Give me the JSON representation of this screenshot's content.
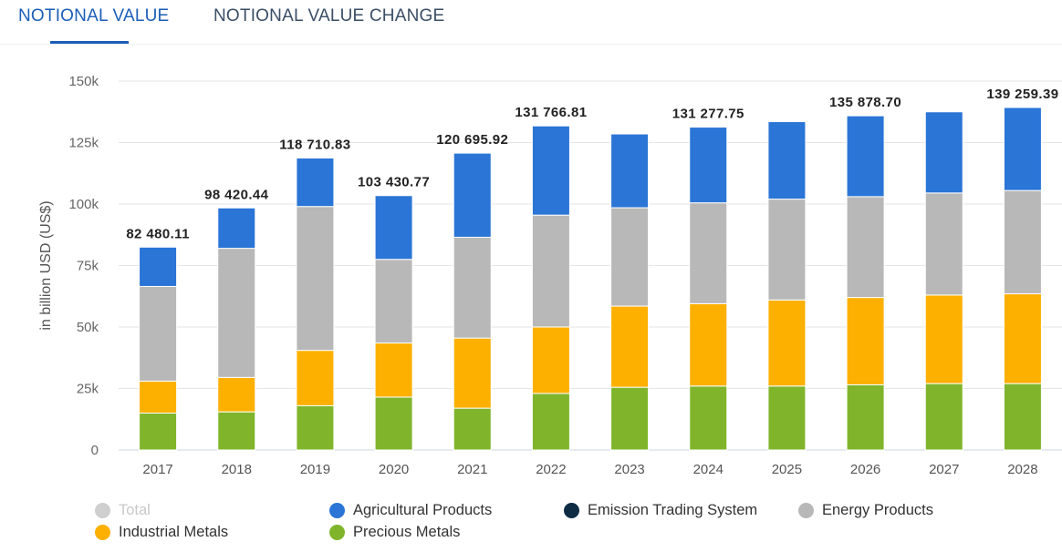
{
  "tabs": [
    {
      "label": "NOTIONAL VALUE",
      "active": true
    },
    {
      "label": "NOTIONAL VALUE CHANGE",
      "active": false
    }
  ],
  "chart_data": {
    "type": "bar",
    "stacked": true,
    "title": "",
    "xlabel": "",
    "ylabel": "in billion USD (US$)",
    "ylim": [
      0,
      150000
    ],
    "yticks": [
      {
        "value": 0,
        "label": "0"
      },
      {
        "value": 25000,
        "label": "25k"
      },
      {
        "value": 50000,
        "label": "50k"
      },
      {
        "value": 75000,
        "label": "75k"
      },
      {
        "value": 100000,
        "label": "100k"
      },
      {
        "value": 125000,
        "label": "125k"
      },
      {
        "value": 150000,
        "label": "150k"
      }
    ],
    "categories": [
      "2017",
      "2018",
      "2019",
      "2020",
      "2021",
      "2022",
      "2023",
      "2024",
      "2025",
      "2026",
      "2027",
      "2028"
    ],
    "series": [
      {
        "name": "Precious Metals",
        "color": "#80b52b",
        "values": [
          15000,
          15500,
          18000,
          21500,
          17000,
          23000,
          25500,
          26000,
          26000,
          26500,
          27000,
          27000
        ]
      },
      {
        "name": "Industrial Metals",
        "color": "#fdb000",
        "values": [
          13000,
          14000,
          22500,
          22000,
          28500,
          27000,
          33000,
          33500,
          35000,
          35500,
          36000,
          36500
        ]
      },
      {
        "name": "Energy Products",
        "color": "#b8b8b8",
        "values": [
          38500,
          52500,
          58500,
          34000,
          41000,
          45500,
          40000,
          41000,
          41000,
          41000,
          41500,
          42000
        ]
      },
      {
        "name": "Emission Trading System",
        "color": "#0f2c45",
        "values": [
          0,
          0,
          0,
          0,
          0,
          0,
          0,
          0,
          0,
          0,
          0,
          0
        ]
      },
      {
        "name": "Agricultural Products",
        "color": "#2a75d6",
        "values": [
          15980.11,
          16420.44,
          19710.83,
          25930.77,
          34195.92,
          36266.81,
          30000,
          30777.75,
          31500,
          32878.7,
          33000,
          33759.39
        ]
      }
    ],
    "totals": [
      82480.11,
      98420.44,
      118710.83,
      103430.77,
      120695.92,
      131766.81,
      null,
      131277.75,
      null,
      135878.7,
      null,
      139259.39
    ],
    "data_labels": [
      "82 480.11",
      "98 420.44",
      "118 710.83",
      "103 430.77",
      "120 695.92",
      "131 766.81",
      "",
      "131 277.75",
      "",
      "135 878.70",
      "",
      "139 259.39"
    ],
    "legend": [
      {
        "name": "Total",
        "color": "#cfcfcf",
        "enabled": false
      },
      {
        "name": "Agricultural Products",
        "color": "#2a75d6",
        "enabled": true
      },
      {
        "name": "Emission Trading System",
        "color": "#0f2c45",
        "enabled": true
      },
      {
        "name": "Energy Products",
        "color": "#b8b8b8",
        "enabled": true
      },
      {
        "name": "Industrial Metals",
        "color": "#fdb000",
        "enabled": true
      },
      {
        "name": "Precious Metals",
        "color": "#80b52b",
        "enabled": true
      }
    ],
    "legend_position": "bottom-left",
    "grid": true
  }
}
